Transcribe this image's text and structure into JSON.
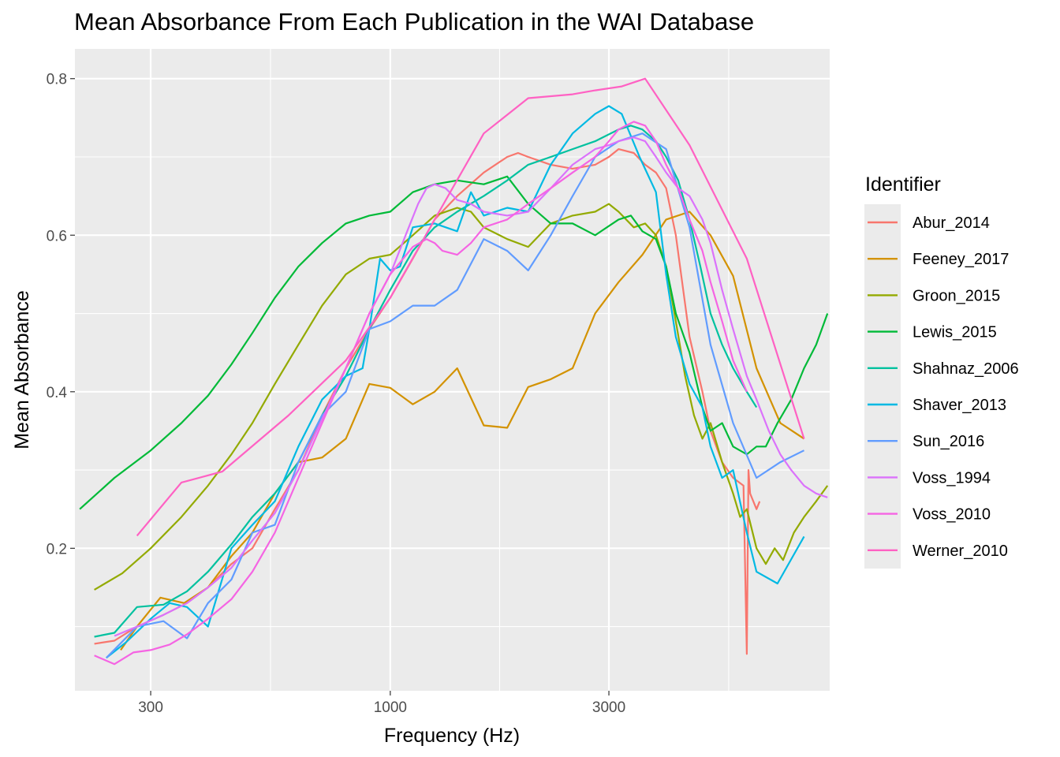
{
  "chart_data": {
    "type": "line",
    "title": "Mean Absorbance From Each Publication in the WAI Database",
    "xlabel": "Frequency (Hz)",
    "ylabel": "Mean Absorbance",
    "x_scale": "log10",
    "xlim": [
      205,
      9100
    ],
    "ylim": [
      0.018,
      0.838
    ],
    "x_ticks": [
      300,
      1000,
      3000
    ],
    "x_tick_labels": [
      "300",
      "1000",
      "3000"
    ],
    "y_ticks": [
      0.2,
      0.4,
      0.6,
      0.8
    ],
    "y_tick_labels": [
      "0.2",
      "0.4",
      "0.6",
      "0.8"
    ],
    "grid": true,
    "legend": {
      "title": "Identifier",
      "position": "right"
    },
    "series": [
      {
        "name": "Abur_2014",
        "color": "#F8766D",
        "x": [
          226,
          250,
          280,
          320,
          360,
          400,
          450,
          500,
          560,
          630,
          710,
          800,
          900,
          1000,
          1120,
          1250,
          1400,
          1600,
          1800,
          1900,
          2000,
          2240,
          2500,
          2800,
          3000,
          3150,
          3400,
          3600,
          3800,
          4000,
          4200,
          4500,
          4800,
          5000,
          5300,
          5600,
          5900,
          6000,
          6050,
          6100,
          6300,
          6400
        ],
        "y": [
          0.078,
          0.082,
          0.1,
          0.115,
          0.13,
          0.15,
          0.18,
          0.2,
          0.25,
          0.3,
          0.37,
          0.43,
          0.48,
          0.52,
          0.57,
          0.62,
          0.65,
          0.68,
          0.7,
          0.705,
          0.7,
          0.69,
          0.685,
          0.69,
          0.7,
          0.71,
          0.705,
          0.69,
          0.68,
          0.66,
          0.6,
          0.47,
          0.4,
          0.35,
          0.31,
          0.29,
          0.28,
          0.065,
          0.3,
          0.27,
          0.25,
          0.26
        ]
      },
      {
        "name": "Feeney_2017",
        "color": "#D39200",
        "x": [
          258,
          280,
          315,
          355,
          400,
          450,
          500,
          560,
          630,
          710,
          800,
          900,
          1000,
          1120,
          1250,
          1400,
          1600,
          1800,
          2000,
          2240,
          2500,
          2800,
          3150,
          3550,
          4000,
          4500,
          5000,
          5600,
          6300,
          7100,
          8000
        ],
        "y": [
          0.07,
          0.1,
          0.137,
          0.13,
          0.15,
          0.19,
          0.22,
          0.27,
          0.31,
          0.316,
          0.34,
          0.41,
          0.405,
          0.384,
          0.4,
          0.43,
          0.357,
          0.354,
          0.406,
          0.416,
          0.43,
          0.5,
          0.54,
          0.575,
          0.62,
          0.63,
          0.6,
          0.548,
          0.43,
          0.36,
          0.34
        ]
      },
      {
        "name": "Groon_2015",
        "color": "#93AA00",
        "x": [
          226,
          260,
          300,
          350,
          400,
          450,
          500,
          560,
          630,
          710,
          800,
          900,
          1000,
          1120,
          1250,
          1400,
          1500,
          1600,
          1800,
          2000,
          2240,
          2500,
          2800,
          3000,
          3150,
          3400,
          3600,
          3800,
          4000,
          4200,
          4400,
          4600,
          4800,
          5000,
          5300,
          5600,
          5800,
          6000,
          6300,
          6600,
          6900,
          7200,
          7600,
          8000,
          8500,
          9000
        ],
        "y": [
          0.147,
          0.168,
          0.2,
          0.24,
          0.28,
          0.32,
          0.36,
          0.41,
          0.46,
          0.51,
          0.55,
          0.57,
          0.575,
          0.6,
          0.625,
          0.635,
          0.63,
          0.61,
          0.595,
          0.585,
          0.615,
          0.625,
          0.63,
          0.64,
          0.63,
          0.61,
          0.615,
          0.6,
          0.56,
          0.49,
          0.42,
          0.37,
          0.34,
          0.36,
          0.31,
          0.27,
          0.24,
          0.25,
          0.2,
          0.18,
          0.2,
          0.185,
          0.22,
          0.24,
          0.26,
          0.28
        ]
      },
      {
        "name": "Lewis_2015",
        "color": "#00BA38",
        "x": [
          210,
          250,
          300,
          350,
          400,
          450,
          500,
          560,
          630,
          710,
          800,
          900,
          1000,
          1120,
          1250,
          1400,
          1600,
          1800,
          2000,
          2240,
          2500,
          2800,
          3150,
          3350,
          3550,
          3800,
          4000,
          4200,
          4500,
          4800,
          5000,
          5300,
          5600,
          6000,
          6300,
          6600,
          7000,
          7500,
          8000,
          8500,
          9000
        ],
        "y": [
          0.25,
          0.29,
          0.325,
          0.36,
          0.395,
          0.435,
          0.475,
          0.52,
          0.56,
          0.59,
          0.615,
          0.625,
          0.63,
          0.655,
          0.665,
          0.67,
          0.665,
          0.675,
          0.64,
          0.615,
          0.615,
          0.6,
          0.62,
          0.625,
          0.605,
          0.595,
          0.56,
          0.5,
          0.45,
          0.38,
          0.35,
          0.36,
          0.33,
          0.32,
          0.33,
          0.33,
          0.36,
          0.39,
          0.43,
          0.46,
          0.5
        ]
      },
      {
        "name": "Shahnaz_2006",
        "color": "#00C19F",
        "x": [
          226,
          250,
          280,
          320,
          360,
          400,
          450,
          500,
          560,
          630,
          710,
          800,
          900,
          1000,
          1120,
          1250,
          1400,
          1600,
          1800,
          2000,
          2240,
          2500,
          2800,
          3150,
          3350,
          3550,
          3800,
          4000,
          4250,
          4500,
          4750,
          5000,
          5300,
          5600,
          6000,
          6300
        ],
        "y": [
          0.087,
          0.092,
          0.125,
          0.128,
          0.145,
          0.17,
          0.205,
          0.24,
          0.27,
          0.31,
          0.37,
          0.42,
          0.48,
          0.53,
          0.58,
          0.61,
          0.63,
          0.65,
          0.67,
          0.69,
          0.7,
          0.71,
          0.72,
          0.735,
          0.74,
          0.735,
          0.72,
          0.7,
          0.67,
          0.62,
          0.56,
          0.5,
          0.46,
          0.43,
          0.4,
          0.38
        ]
      },
      {
        "name": "Shaver_2013",
        "color": "#00B9E3",
        "x": [
          240,
          265,
          300,
          330,
          360,
          400,
          450,
          500,
          560,
          630,
          710,
          800,
          870,
          900,
          950,
          1000,
          1050,
          1120,
          1250,
          1400,
          1500,
          1600,
          1800,
          2000,
          2240,
          2500,
          2800,
          3000,
          3200,
          3500,
          3800,
          4000,
          4200,
          4500,
          4800,
          5000,
          5300,
          5600,
          6000,
          6300,
          7000,
          8000
        ],
        "y": [
          0.06,
          0.08,
          0.11,
          0.13,
          0.125,
          0.1,
          0.2,
          0.23,
          0.26,
          0.33,
          0.39,
          0.42,
          0.43,
          0.48,
          0.57,
          0.555,
          0.56,
          0.61,
          0.615,
          0.605,
          0.655,
          0.625,
          0.635,
          0.63,
          0.69,
          0.73,
          0.755,
          0.765,
          0.755,
          0.7,
          0.655,
          0.55,
          0.47,
          0.41,
          0.38,
          0.33,
          0.29,
          0.3,
          0.22,
          0.17,
          0.155,
          0.215
        ]
      },
      {
        "name": "Sun_2016",
        "color": "#619CFF",
        "x": [
          240,
          280,
          320,
          360,
          400,
          450,
          500,
          560,
          630,
          710,
          800,
          900,
          1000,
          1120,
          1250,
          1400,
          1600,
          1800,
          2000,
          2240,
          2500,
          2800,
          3150,
          3550,
          4000,
          4500,
          5000,
          5600,
          6300,
          7100,
          8000
        ],
        "y": [
          0.06,
          0.1,
          0.107,
          0.085,
          0.13,
          0.16,
          0.22,
          0.23,
          0.31,
          0.37,
          0.4,
          0.48,
          0.49,
          0.51,
          0.51,
          0.53,
          0.595,
          0.58,
          0.555,
          0.6,
          0.65,
          0.7,
          0.72,
          0.73,
          0.71,
          0.61,
          0.46,
          0.36,
          0.29,
          0.31,
          0.325
        ]
      },
      {
        "name": "Voss_1994",
        "color": "#DB72FB",
        "x": [
          250,
          280,
          320,
          360,
          400,
          450,
          500,
          560,
          630,
          710,
          800,
          900,
          1000,
          1080,
          1150,
          1200,
          1250,
          1320,
          1400,
          1500,
          1600,
          1800,
          2000,
          2240,
          2500,
          2800,
          3000,
          3150,
          3400,
          3600,
          3800,
          4000,
          4250,
          4500,
          4800,
          5000,
          5300,
          5600,
          6000,
          6300,
          6700,
          7100,
          7500,
          8000,
          8500,
          9000
        ],
        "y": [
          0.088,
          0.1,
          0.115,
          0.13,
          0.15,
          0.175,
          0.21,
          0.245,
          0.3,
          0.365,
          0.43,
          0.5,
          0.55,
          0.6,
          0.64,
          0.66,
          0.665,
          0.66,
          0.645,
          0.64,
          0.63,
          0.625,
          0.63,
          0.66,
          0.69,
          0.71,
          0.715,
          0.72,
          0.725,
          0.72,
          0.7,
          0.68,
          0.66,
          0.65,
          0.62,
          0.59,
          0.53,
          0.48,
          0.42,
          0.39,
          0.35,
          0.32,
          0.3,
          0.28,
          0.27,
          0.265
        ]
      },
      {
        "name": "Voss_2010",
        "color": "#F564E3",
        "x": [
          226,
          250,
          275,
          300,
          330,
          360,
          400,
          450,
          500,
          560,
          630,
          710,
          800,
          900,
          1000,
          1120,
          1200,
          1250,
          1300,
          1400,
          1500,
          1600,
          1800,
          2000,
          2240,
          2500,
          2800,
          3000,
          3150,
          3400,
          3600,
          3800,
          4000,
          4250,
          4500,
          4800,
          5000,
          5300,
          5600,
          6000
        ],
        "y": [
          0.063,
          0.052,
          0.067,
          0.07,
          0.077,
          0.09,
          0.11,
          0.135,
          0.17,
          0.22,
          0.29,
          0.36,
          0.43,
          0.5,
          0.55,
          0.585,
          0.595,
          0.59,
          0.58,
          0.575,
          0.59,
          0.61,
          0.62,
          0.64,
          0.66,
          0.68,
          0.7,
          0.72,
          0.735,
          0.745,
          0.74,
          0.72,
          0.69,
          0.66,
          0.62,
          0.58,
          0.54,
          0.49,
          0.44,
          0.4
        ]
      },
      {
        "name": "Werner_2010",
        "color": "#FF61C3",
        "x": [
          280,
          350,
          430,
          600,
          800,
          1000,
          1250,
          1600,
          2000,
          2500,
          2800,
          3200,
          3600,
          4500,
          6000,
          8000
        ],
        "y": [
          0.216,
          0.284,
          0.298,
          0.37,
          0.44,
          0.52,
          0.62,
          0.73,
          0.775,
          0.78,
          0.785,
          0.79,
          0.8,
          0.715,
          0.57,
          0.34
        ]
      }
    ]
  }
}
